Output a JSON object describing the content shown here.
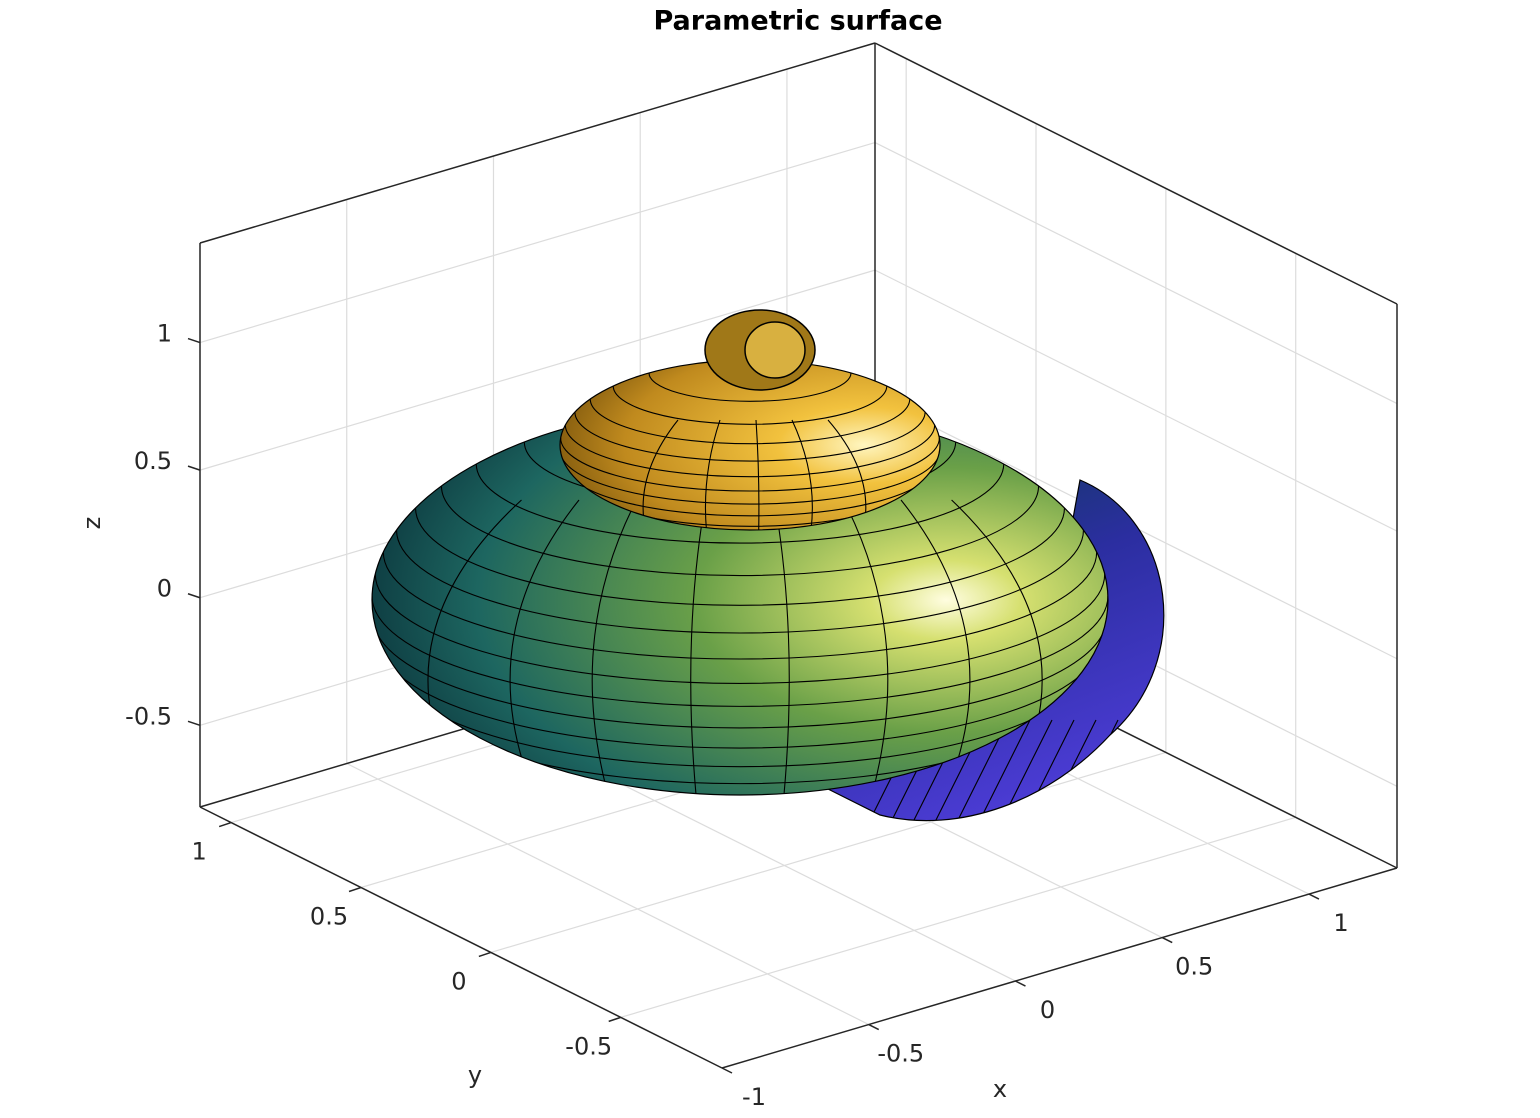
{
  "chart_data": {
    "type": "surface",
    "title": "Parametric surface",
    "xlabel": "x",
    "ylabel": "y",
    "zlabel": "z",
    "xlim": [
      -1,
      1.3
    ],
    "ylim": [
      -0.89,
      1.12
    ],
    "zlim": [
      -0.82,
      1.39
    ],
    "xticks": [
      -1,
      -0.5,
      0,
      0.5,
      1
    ],
    "yticks": [
      -0.5,
      0,
      0.5,
      1
    ],
    "zticks": [
      -0.5,
      0,
      0.5,
      1
    ],
    "grid": true,
    "box": true
  }
}
